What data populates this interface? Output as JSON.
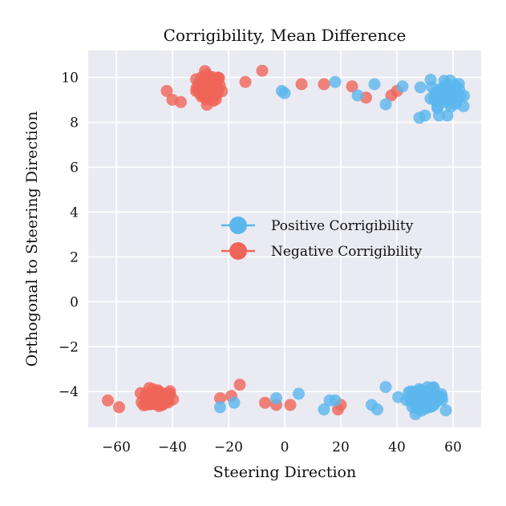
{
  "chart_data": {
    "type": "scatter",
    "title": "Corrigibility, Mean Difference",
    "xlabel": "Steering Direction",
    "ylabel": "Orthogonal to Steering Direction",
    "xlim": [
      -70,
      70
    ],
    "ylim": [
      -5.6,
      11.2
    ],
    "xticks": [
      -60,
      -40,
      -20,
      0,
      20,
      40,
      60
    ],
    "yticks": [
      -4,
      -2,
      0,
      2,
      4,
      6,
      8,
      10
    ],
    "xtick_labels": [
      "−60",
      "−40",
      "−20",
      "0",
      "20",
      "40",
      "60"
    ],
    "ytick_labels": [
      "−4",
      "−2",
      "0",
      "2",
      "4",
      "6",
      "8",
      "10"
    ],
    "grid": true,
    "legend_position": "center-right",
    "series": [
      {
        "name": "Positive Corrigibility",
        "color": "#5bb6ec",
        "clusters": [
          {
            "cx": 57,
            "cy": 9.25,
            "sx": 4.5,
            "sy": 0.38,
            "n": 75
          },
          {
            "cx": 50,
            "cy": -4.3,
            "sx": 6,
            "sy": 0.3,
            "n": 80
          }
        ],
        "points": [
          [
            -1,
            9.4
          ],
          [
            0,
            9.3
          ],
          [
            18,
            9.8
          ],
          [
            26,
            9.2
          ],
          [
            32,
            9.7
          ],
          [
            36,
            8.8
          ],
          [
            42,
            9.6
          ],
          [
            48,
            8.2
          ],
          [
            50,
            8.3
          ],
          [
            52,
            9.9
          ],
          [
            55,
            8.3
          ],
          [
            58,
            8.3
          ],
          [
            -23,
            -4.7
          ],
          [
            -18,
            -4.5
          ],
          [
            -3,
            -4.3
          ],
          [
            5,
            -4.1
          ],
          [
            14,
            -4.8
          ],
          [
            16,
            -4.4
          ],
          [
            18,
            -4.4
          ],
          [
            31,
            -4.6
          ],
          [
            33,
            -4.8
          ],
          [
            36,
            -3.8
          ]
        ]
      },
      {
        "name": "Negative Corrigibility",
        "color": "#ef6559",
        "clusters": [
          {
            "cx": -27,
            "cy": 9.55,
            "sx": 4,
            "sy": 0.42,
            "n": 80
          },
          {
            "cx": -45,
            "cy": -4.3,
            "sx": 5,
            "sy": 0.3,
            "n": 85
          }
        ],
        "points": [
          [
            -42,
            9.4
          ],
          [
            -40,
            9.0
          ],
          [
            -37,
            8.9
          ],
          [
            -14,
            9.8
          ],
          [
            -8,
            10.3
          ],
          [
            6,
            9.7
          ],
          [
            14,
            9.7
          ],
          [
            24,
            9.6
          ],
          [
            29,
            9.1
          ],
          [
            38,
            9.2
          ],
          [
            40,
            9.4
          ],
          [
            -63,
            -4.4
          ],
          [
            -59,
            -4.7
          ],
          [
            -23,
            -4.3
          ],
          [
            -19,
            -4.2
          ],
          [
            -16,
            -3.7
          ],
          [
            -7,
            -4.5
          ],
          [
            -3,
            -4.6
          ],
          [
            2,
            -4.6
          ],
          [
            19,
            -4.8
          ],
          [
            20,
            -4.6
          ]
        ]
      }
    ]
  }
}
